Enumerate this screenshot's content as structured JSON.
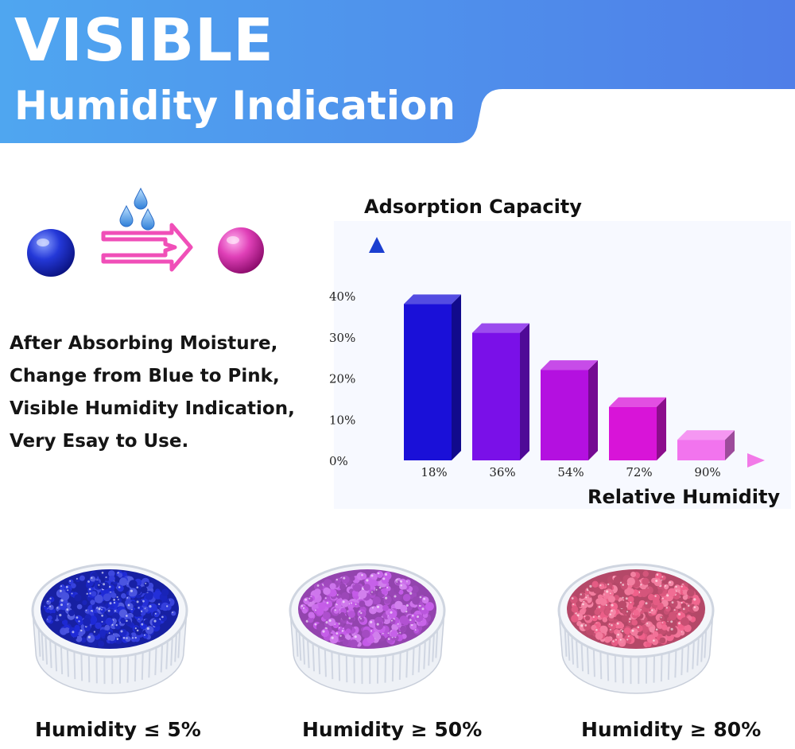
{
  "header": {
    "title": "VISIBLE",
    "subtitle": "Humidity Indication"
  },
  "colors": {
    "banner_left": "#4fa6f0",
    "banner_right": "#4f7ee8",
    "dry_blue": "#1c2fd0",
    "wet_pink": "#e040b8",
    "arrow_pink": "#f04fb8",
    "drop_blue": "#3b8fe0"
  },
  "description": {
    "lines": [
      "After Absorbing Moisture,",
      "Change from Blue to Pink,",
      "Visible Humidity Indication,",
      "Very Esay to Use."
    ]
  },
  "chart_data": {
    "type": "bar",
    "title": "Adsorption Capacity",
    "xlabel": "Relative Humidity",
    "ylabel": "Adsorption Capacity",
    "categories": [
      "18%",
      "36%",
      "54%",
      "72%",
      "90%"
    ],
    "values": [
      38,
      31,
      22,
      13,
      5
    ],
    "yticks": [
      "0%",
      "10%",
      "20%",
      "30%",
      "40%"
    ],
    "ylim": [
      0,
      40
    ],
    "bar_colors": [
      "#1a10d8",
      "#7a10e8",
      "#b410e0",
      "#d814d8",
      "#f274ee"
    ],
    "grid": false,
    "legend": "none"
  },
  "dishes": [
    {
      "caption": "Humidity ≤ 5%",
      "bead_color": "#1e2ad8"
    },
    {
      "caption": "Humidity ≥ 50%",
      "bead_color": "#c45ae8"
    },
    {
      "caption": "Humidity ≥ 80%",
      "bead_color": "#f0608a"
    }
  ]
}
